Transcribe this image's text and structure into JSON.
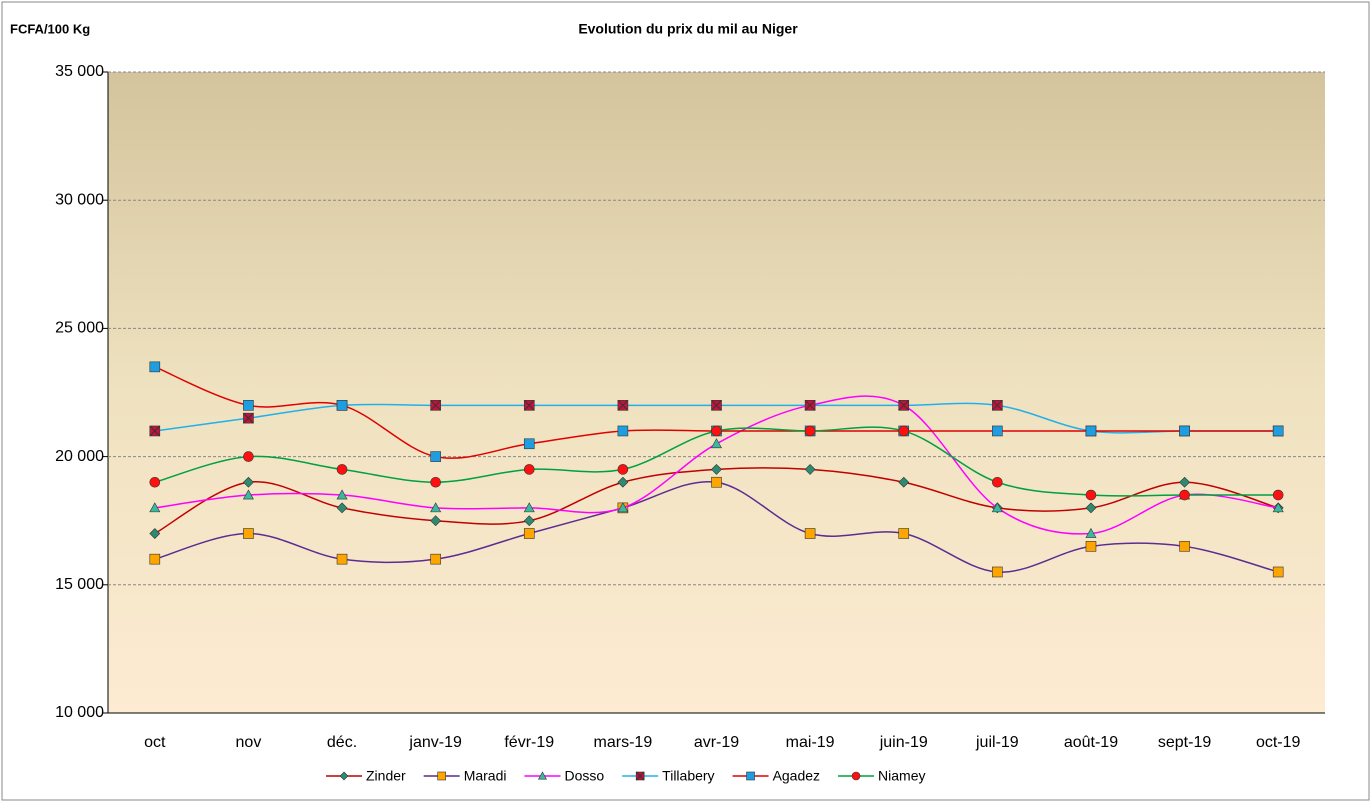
{
  "chart_data": {
    "type": "line",
    "title": "Evolution du prix du mil au Niger",
    "y_label": "FCFA/100 Kg",
    "categories": [
      "oct",
      "nov",
      "déc.",
      "janv-19",
      "févr-19",
      "mars-19",
      "avr-19",
      "mai-19",
      "juin-19",
      "juil-19",
      "août-19",
      "sept-19",
      "oct-19"
    ],
    "ylim": [
      10000,
      35000
    ],
    "yticks": [
      {
        "value": 10000,
        "label": "10 000"
      },
      {
        "value": 15000,
        "label": "15 000"
      },
      {
        "value": 20000,
        "label": "20 000"
      },
      {
        "value": 25000,
        "label": "25 000"
      },
      {
        "value": 30000,
        "label": "30 000"
      },
      {
        "value": 35000,
        "label": "35 000"
      }
    ],
    "grid": true,
    "smooth": true,
    "legend": "bottom",
    "series": [
      {
        "name": "Zinder",
        "color": "#c00000",
        "marker": "diamond",
        "marker_color": "#2e8b72",
        "values": [
          17000,
          19000,
          18000,
          17500,
          17500,
          19000,
          19500,
          19500,
          19000,
          18000,
          18000,
          19000,
          18000
        ]
      },
      {
        "name": "Maradi",
        "color": "#5b2c91",
        "marker": "square",
        "marker_color": "#ffa500",
        "values": [
          16000,
          17000,
          16000,
          16000,
          17000,
          18000,
          19000,
          17000,
          17000,
          15500,
          16500,
          16500,
          15500
        ]
      },
      {
        "name": "Dosso",
        "color": "#ff00ff",
        "marker": "triangle",
        "marker_color": "#3cb8a0",
        "values": [
          18000,
          18500,
          18500,
          18000,
          18000,
          18000,
          20500,
          22000,
          22000,
          18000,
          17000,
          18500,
          18000
        ]
      },
      {
        "name": "Tillabery",
        "color": "#22b0e8",
        "marker": "xsquare",
        "marker_color": "#c0143c",
        "values": [
          21000,
          21500,
          22000,
          22000,
          22000,
          22000,
          22000,
          22000,
          22000,
          22000,
          21000,
          21000,
          21000
        ]
      },
      {
        "name": "Agadez",
        "color": "#e00000",
        "marker": "square",
        "marker_color": "#1e9ee0",
        "values": [
          23500,
          22000,
          22000,
          20000,
          20500,
          21000,
          21000,
          21000,
          21000,
          21000,
          21000,
          21000,
          21000
        ]
      },
      {
        "name": "Niamey",
        "color": "#00a040",
        "marker": "circle",
        "marker_color": "#ff1010",
        "values": [
          19000,
          20000,
          19500,
          19000,
          19500,
          19500,
          21000,
          21000,
          21000,
          19000,
          18500,
          18500,
          18500
        ]
      }
    ]
  }
}
